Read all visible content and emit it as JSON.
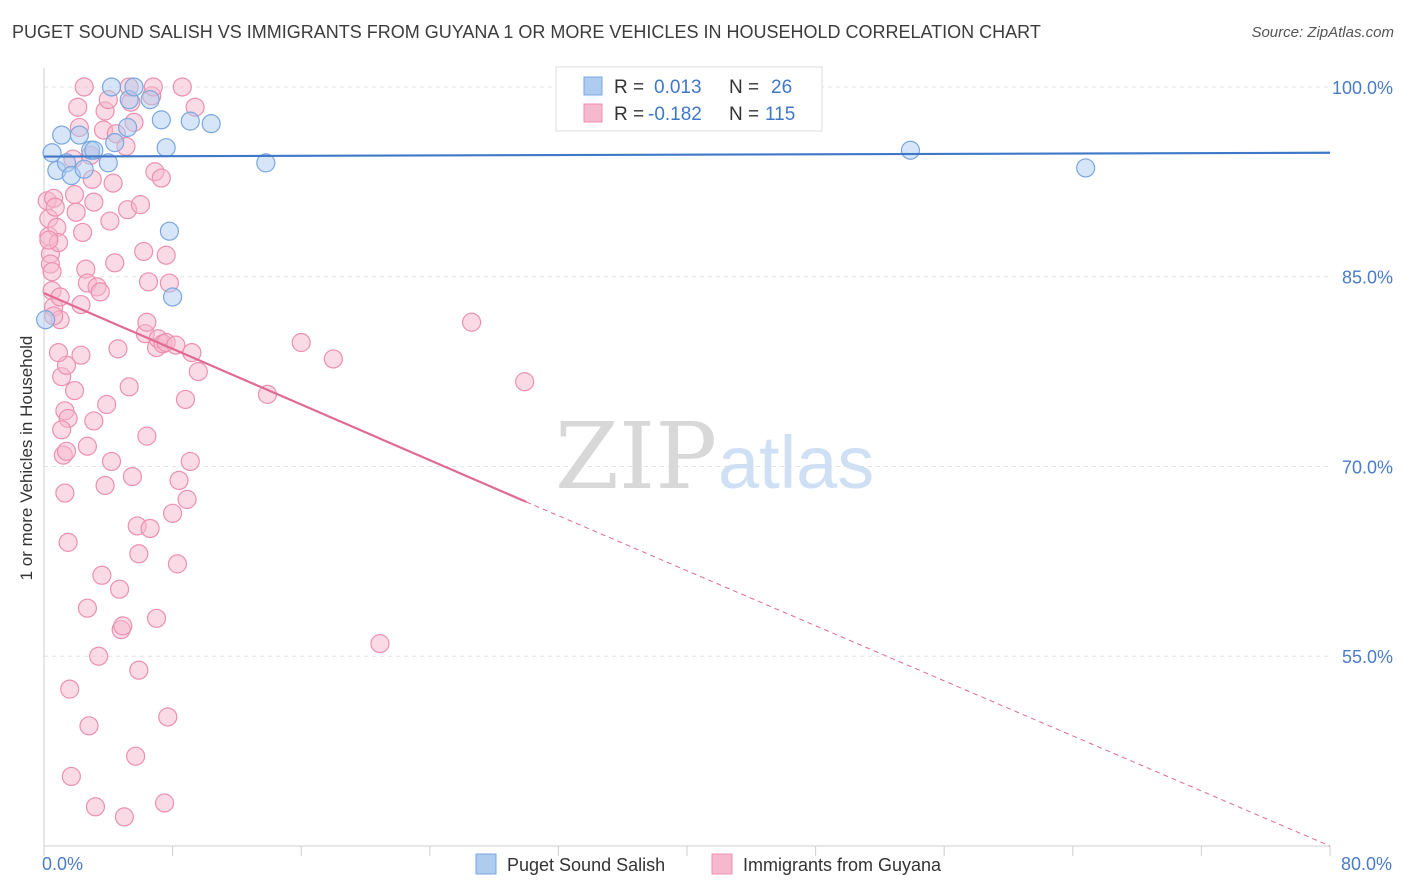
{
  "header": {
    "title": "PUGET SOUND SALISH VS IMMIGRANTS FROM GUYANA 1 OR MORE VEHICLES IN HOUSEHOLD CORRELATION CHART",
    "source": "Source: ZipAtlas.com"
  },
  "watermark": {
    "zip": "ZIP",
    "atlas": "atlas"
  },
  "colors": {
    "blue_fill": "#aecbf0",
    "blue_stroke": "#7aa7e0",
    "blue_line": "#3f78c8",
    "pink_fill": "#f6b8cc",
    "pink_stroke": "#ec90ae",
    "pink_line": "#e06a93",
    "axis_text": "#4a7cc7",
    "grid": "#e2e2e2"
  },
  "legend_box": {
    "rows": [
      {
        "r_label": "R =",
        "r_value": "0.013",
        "n_label": "N =",
        "n_value": "26"
      },
      {
        "r_label": "R =",
        "r_value": "-0.182",
        "n_label": "N =",
        "n_value": "115"
      }
    ]
  },
  "chart_data": {
    "type": "scatter",
    "title": "PUGET SOUND SALISH VS IMMIGRANTS FROM GUYANA 1 OR MORE VEHICLES IN HOUSEHOLD CORRELATION CHART",
    "xlabel": "",
    "ylabel": "1 or more Vehicles in Household",
    "xlim": [
      0,
      80
    ],
    "ylim": [
      40,
      101.5
    ],
    "x_tick_labels": [
      "0.0%",
      "80.0%"
    ],
    "y_ticks": [
      100,
      85,
      70,
      55
    ],
    "y_tick_labels": [
      "100.0%",
      "85.0%",
      "70.0%",
      "55.0%"
    ],
    "legend": [
      "Puget Sound Salish",
      "Immigrants from Guyana"
    ],
    "legend_position": "bottom-center",
    "series": [
      {
        "name": "Puget Sound Salish",
        "r": 0.013,
        "n": 26,
        "trend": {
          "x0": 0,
          "y0": 94.5,
          "x1": 80,
          "y1": 94.8
        },
        "points": [
          [
            0.1,
            81.6
          ],
          [
            0.5,
            94.8
          ],
          [
            0.8,
            93.4
          ],
          [
            1.1,
            96.2
          ],
          [
            1.4,
            94.0
          ],
          [
            1.7,
            93.0
          ],
          [
            2.2,
            96.2
          ],
          [
            2.5,
            93.5
          ],
          [
            2.9,
            95.0
          ],
          [
            3.1,
            95.0
          ],
          [
            4.0,
            94.0
          ],
          [
            4.4,
            95.6
          ],
          [
            4.2,
            100.0
          ],
          [
            5.2,
            96.8
          ],
          [
            5.3,
            99.0
          ],
          [
            5.6,
            100.0
          ],
          [
            6.6,
            99.0
          ],
          [
            7.3,
            97.4
          ],
          [
            7.6,
            95.2
          ],
          [
            7.8,
            88.6
          ],
          [
            8.0,
            83.4
          ],
          [
            9.1,
            97.3
          ],
          [
            10.4,
            97.1
          ],
          [
            13.8,
            94.0
          ],
          [
            53.9,
            95.0
          ],
          [
            64.8,
            93.6
          ]
        ]
      },
      {
        "name": "Immigrants from Guyana",
        "r": -0.182,
        "n": 115,
        "trend": {
          "x0": 0,
          "y0": 83.7,
          "x1": 30,
          "y1": 67.2
        },
        "trend_dashed": {
          "x0": 30,
          "y0": 67.2,
          "x1": 80,
          "y1": 40
        },
        "points": [
          [
            0.2,
            91.0
          ],
          [
            0.3,
            89.6
          ],
          [
            0.3,
            88.2
          ],
          [
            0.4,
            86.8
          ],
          [
            0.4,
            86.0
          ],
          [
            0.5,
            85.4
          ],
          [
            0.5,
            83.9
          ],
          [
            0.6,
            82.6
          ],
          [
            0.6,
            91.2
          ],
          [
            0.7,
            90.5
          ],
          [
            0.8,
            88.9
          ],
          [
            0.9,
            87.7
          ],
          [
            1.0,
            83.4
          ],
          [
            1.0,
            81.6
          ],
          [
            1.1,
            77.1
          ],
          [
            1.2,
            70.9
          ],
          [
            1.3,
            74.4
          ],
          [
            1.3,
            67.9
          ],
          [
            1.4,
            78.0
          ],
          [
            1.4,
            71.2
          ],
          [
            1.5,
            73.8
          ],
          [
            1.6,
            52.4
          ],
          [
            1.7,
            45.5
          ],
          [
            1.8,
            94.3
          ],
          [
            1.9,
            91.5
          ],
          [
            2.0,
            90.1
          ],
          [
            2.1,
            98.4
          ],
          [
            2.2,
            96.8
          ],
          [
            2.3,
            78.8
          ],
          [
            2.4,
            88.5
          ],
          [
            2.5,
            100.0
          ],
          [
            2.6,
            85.6
          ],
          [
            2.7,
            84.5
          ],
          [
            2.7,
            71.6
          ],
          [
            2.8,
            49.5
          ],
          [
            2.9,
            94.6
          ],
          [
            3.0,
            92.7
          ],
          [
            3.1,
            90.9
          ],
          [
            3.2,
            43.1
          ],
          [
            3.3,
            84.2
          ],
          [
            3.5,
            83.8
          ],
          [
            3.6,
            61.4
          ],
          [
            3.7,
            96.6
          ],
          [
            3.8,
            98.1
          ],
          [
            3.9,
            74.9
          ],
          [
            4.0,
            99.0
          ],
          [
            4.1,
            89.4
          ],
          [
            4.2,
            70.4
          ],
          [
            4.3,
            92.4
          ],
          [
            4.5,
            96.3
          ],
          [
            4.6,
            79.3
          ],
          [
            4.8,
            57.1
          ],
          [
            4.9,
            57.4
          ],
          [
            5.0,
            42.3
          ],
          [
            5.1,
            95.3
          ],
          [
            5.2,
            90.3
          ],
          [
            5.3,
            100.0
          ],
          [
            5.4,
            98.8
          ],
          [
            5.5,
            69.2
          ],
          [
            5.6,
            97.2
          ],
          [
            5.7,
            47.1
          ],
          [
            5.8,
            65.3
          ],
          [
            5.9,
            63.1
          ],
          [
            6.0,
            90.7
          ],
          [
            6.2,
            87.0
          ],
          [
            6.3,
            80.5
          ],
          [
            6.4,
            81.4
          ],
          [
            6.5,
            84.6
          ],
          [
            6.6,
            65.1
          ],
          [
            6.7,
            99.3
          ],
          [
            6.8,
            100.0
          ],
          [
            6.9,
            93.3
          ],
          [
            7.0,
            79.4
          ],
          [
            7.1,
            80.1
          ],
          [
            7.3,
            92.8
          ],
          [
            7.4,
            79.7
          ],
          [
            7.5,
            43.4
          ],
          [
            7.6,
            79.8
          ],
          [
            7.7,
            50.2
          ],
          [
            7.8,
            84.5
          ],
          [
            8.0,
            66.3
          ],
          [
            8.2,
            79.6
          ],
          [
            8.3,
            62.3
          ],
          [
            8.6,
            100.0
          ],
          [
            8.8,
            75.3
          ],
          [
            8.9,
            67.4
          ],
          [
            9.1,
            70.4
          ],
          [
            9.2,
            79.0
          ],
          [
            9.4,
            98.4
          ],
          [
            13.9,
            75.7
          ],
          [
            16.0,
            79.8
          ],
          [
            18.0,
            78.5
          ],
          [
            20.9,
            56.0
          ],
          [
            26.6,
            81.4
          ],
          [
            29.9,
            76.7
          ],
          [
            0.3,
            87.9
          ],
          [
            0.6,
            81.9
          ],
          [
            0.9,
            79.0
          ],
          [
            1.1,
            72.9
          ],
          [
            1.5,
            64.0
          ],
          [
            1.9,
            76.0
          ],
          [
            2.3,
            82.8
          ],
          [
            2.7,
            58.8
          ],
          [
            3.1,
            73.6
          ],
          [
            3.4,
            55.0
          ],
          [
            3.8,
            68.5
          ],
          [
            4.4,
            86.1
          ],
          [
            4.7,
            60.3
          ],
          [
            5.3,
            76.3
          ],
          [
            5.9,
            53.9
          ],
          [
            6.4,
            72.4
          ],
          [
            7.0,
            58.0
          ],
          [
            7.6,
            86.7
          ],
          [
            8.4,
            68.9
          ],
          [
            9.6,
            77.5
          ]
        ]
      }
    ]
  }
}
